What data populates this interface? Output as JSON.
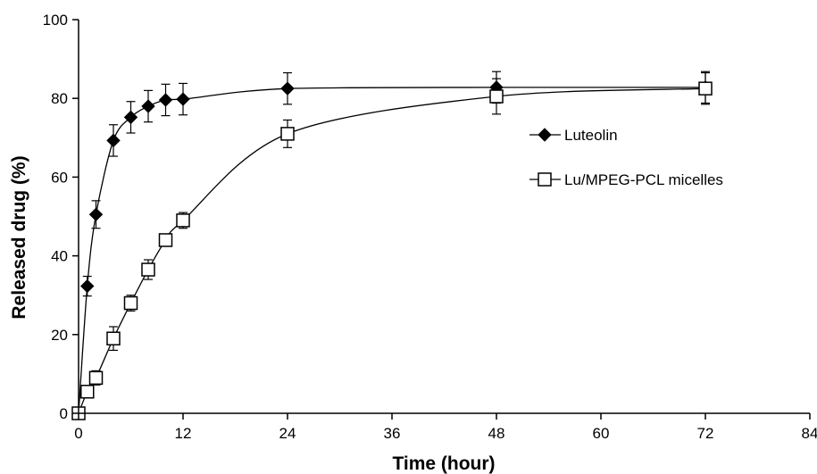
{
  "chart_data": {
    "type": "line",
    "title": "",
    "xlabel": "Time (hour)",
    "ylabel": "Released drug (%)",
    "xlim": [
      0,
      84
    ],
    "ylim": [
      0,
      100
    ],
    "xticks": [
      0,
      12,
      24,
      36,
      48,
      60,
      72,
      84
    ],
    "yticks": [
      0,
      20,
      40,
      60,
      80,
      100
    ],
    "grid": false,
    "legend_position": "right",
    "series": [
      {
        "name": "Luteolin",
        "marker": "filled-diamond",
        "color": "#000000",
        "x": [
          0,
          1,
          2,
          4,
          6,
          8,
          10,
          12,
          24,
          48,
          72
        ],
        "y": [
          0,
          32.3,
          50.5,
          69.3,
          75.2,
          78.0,
          79.6,
          79.8,
          82.5,
          82.8,
          82.8
        ],
        "error": [
          0,
          2.5,
          3.5,
          4.0,
          4.0,
          4.0,
          4.0,
          4.0,
          4.0,
          4.0,
          4.0
        ]
      },
      {
        "name": "Lu/MPEG-PCL micelles",
        "marker": "open-square",
        "color": "#000000",
        "x": [
          0,
          1,
          2,
          4,
          6,
          8,
          10,
          12,
          24,
          48,
          72
        ],
        "y": [
          0,
          5.5,
          9.0,
          19.0,
          28.0,
          36.5,
          44.0,
          49.0,
          71.0,
          80.5,
          82.5
        ],
        "error": [
          0,
          1.0,
          1.8,
          3.0,
          2.0,
          2.5,
          0,
          2.0,
          3.5,
          4.5,
          4.0
        ]
      }
    ]
  }
}
